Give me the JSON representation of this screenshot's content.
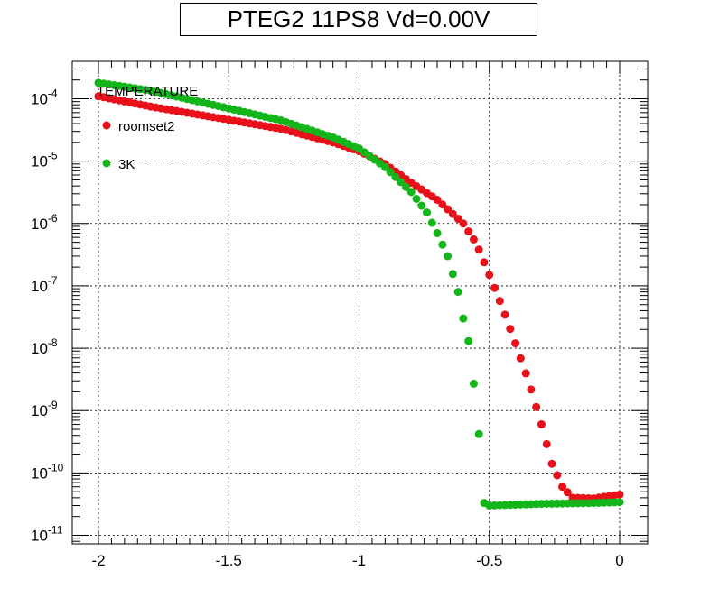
{
  "chart_data": {
    "type": "scatter",
    "title": "PTEG2 11PS8 Vd=0.00V",
    "xlabel": "",
    "ylabel": "",
    "xlim": [
      -2.08,
      0.1
    ],
    "ylim": [
      1e-11,
      0.0003
    ],
    "yscale": "log",
    "grid": true,
    "x_ticks": [
      -2,
      -1.5,
      -1,
      -0.5,
      0
    ],
    "x_tick_labels": [
      "-2",
      "-1.5",
      "-1",
      "-0.5",
      "0"
    ],
    "y_ticks": [
      1e-11,
      1e-10,
      1e-09,
      1e-08,
      1e-07,
      1e-06,
      1e-05,
      0.0001
    ],
    "y_tick_bases": [
      "10",
      "10",
      "10",
      "10",
      "10",
      "10",
      "10",
      "10"
    ],
    "y_tick_exponents": [
      "-11",
      "-10",
      "-9",
      "-8",
      "-7",
      "-6",
      "-5",
      "-4"
    ],
    "legend": {
      "title": "TEMPERATURE",
      "placement": "top-left",
      "entries": [
        "roomset2",
        "3K"
      ]
    },
    "series": [
      {
        "name": "roomset2",
        "color": "#e8111a",
        "curve": "room",
        "x_start": -2.0,
        "x_end": 0.0,
        "x_step": 0.02
      },
      {
        "name": "3K",
        "color": "#13b51a",
        "curve": "cold",
        "x_start": -2.0,
        "x_end": 0.0,
        "x_step": 0.02
      }
    ],
    "room_knots": [
      [
        -2.0,
        0.00011
      ],
      [
        -1.8,
        7.5e-05
      ],
      [
        -1.5,
        4.6e-05
      ],
      [
        -1.3,
        3.3e-05
      ],
      [
        -1.1,
        2e-05
      ],
      [
        -1.0,
        1.45e-05
      ],
      [
        -0.9,
        9e-06
      ],
      [
        -0.8,
        4.5e-06
      ],
      [
        -0.7,
        2.4e-06
      ],
      [
        -0.6,
        1e-06
      ],
      [
        -0.55,
        4.8e-07
      ],
      [
        -0.5,
        1.5e-07
      ],
      [
        -0.45,
        4.5e-08
      ],
      [
        -0.4,
        1.2e-08
      ],
      [
        -0.35,
        3e-09
      ],
      [
        -0.3,
        6e-10
      ],
      [
        -0.26,
        1.4e-10
      ],
      [
        -0.22,
        6e-11
      ],
      [
        -0.18,
        4e-11
      ],
      [
        -0.1,
        3.9e-11
      ],
      [
        0.0,
        4.5e-11
      ]
    ],
    "cold_knots": [
      [
        -2.0,
        0.00018
      ],
      [
        -1.8,
        0.000135
      ],
      [
        -1.5,
        7e-05
      ],
      [
        -1.3,
        4.5e-05
      ],
      [
        -1.1,
        2.4e-05
      ],
      [
        -1.0,
        1.6e-05
      ],
      [
        -0.9,
        8e-06
      ],
      [
        -0.8,
        3.2e-06
      ],
      [
        -0.74,
        1.5e-06
      ],
      [
        -0.7,
        7e-07
      ],
      [
        -0.66,
        3e-07
      ],
      [
        -0.62,
        8e-08
      ],
      [
        -0.6,
        3e-08
      ],
      [
        -0.58,
        1.3e-08
      ],
      [
        -0.56,
        2.7e-09
      ],
      [
        -0.54,
        4.2e-10
      ],
      [
        -0.52,
        3.3e-11
      ],
      [
        -0.5,
        3e-11
      ],
      [
        -0.3,
        3.2e-11
      ],
      [
        -0.1,
        3.3e-11
      ],
      [
        0.0,
        3.4e-11
      ]
    ]
  }
}
